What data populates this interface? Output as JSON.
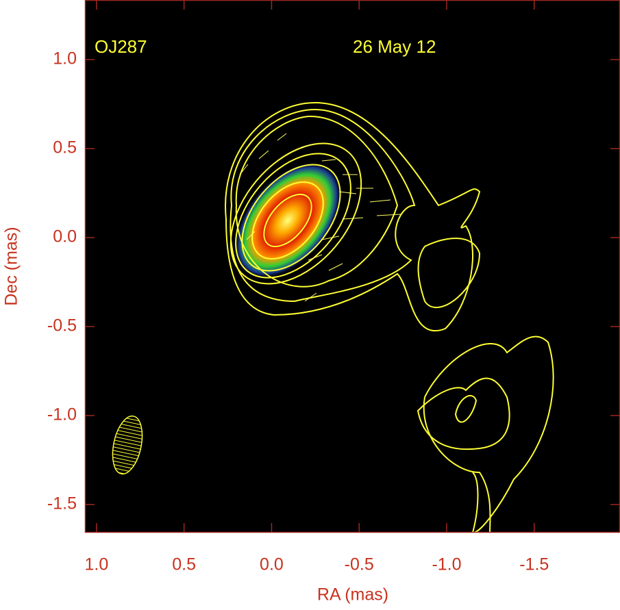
{
  "chart_data": {
    "type": "map",
    "source": "OJ287",
    "date": "26 May 12",
    "x_label": "RA (mas)",
    "y_label": "Dec (mas)",
    "xlim": [
      1.066,
      -1.99
    ],
    "ylim": [
      -1.658,
      1.335
    ],
    "xticks": [
      {
        "value": 1,
        "label": "1.0"
      },
      0.5,
      {
        "value": 0,
        "label": "0.0"
      },
      -0.5,
      {
        "value": -1,
        "label": "-1.0"
      },
      -1.5
    ],
    "yticks": [
      -1.5,
      {
        "value": -1,
        "label": "-1.0"
      },
      -0.5,
      {
        "value": 0,
        "label": "0.0"
      },
      0.5,
      {
        "value": 1,
        "label": "1.0"
      }
    ]
  }
}
